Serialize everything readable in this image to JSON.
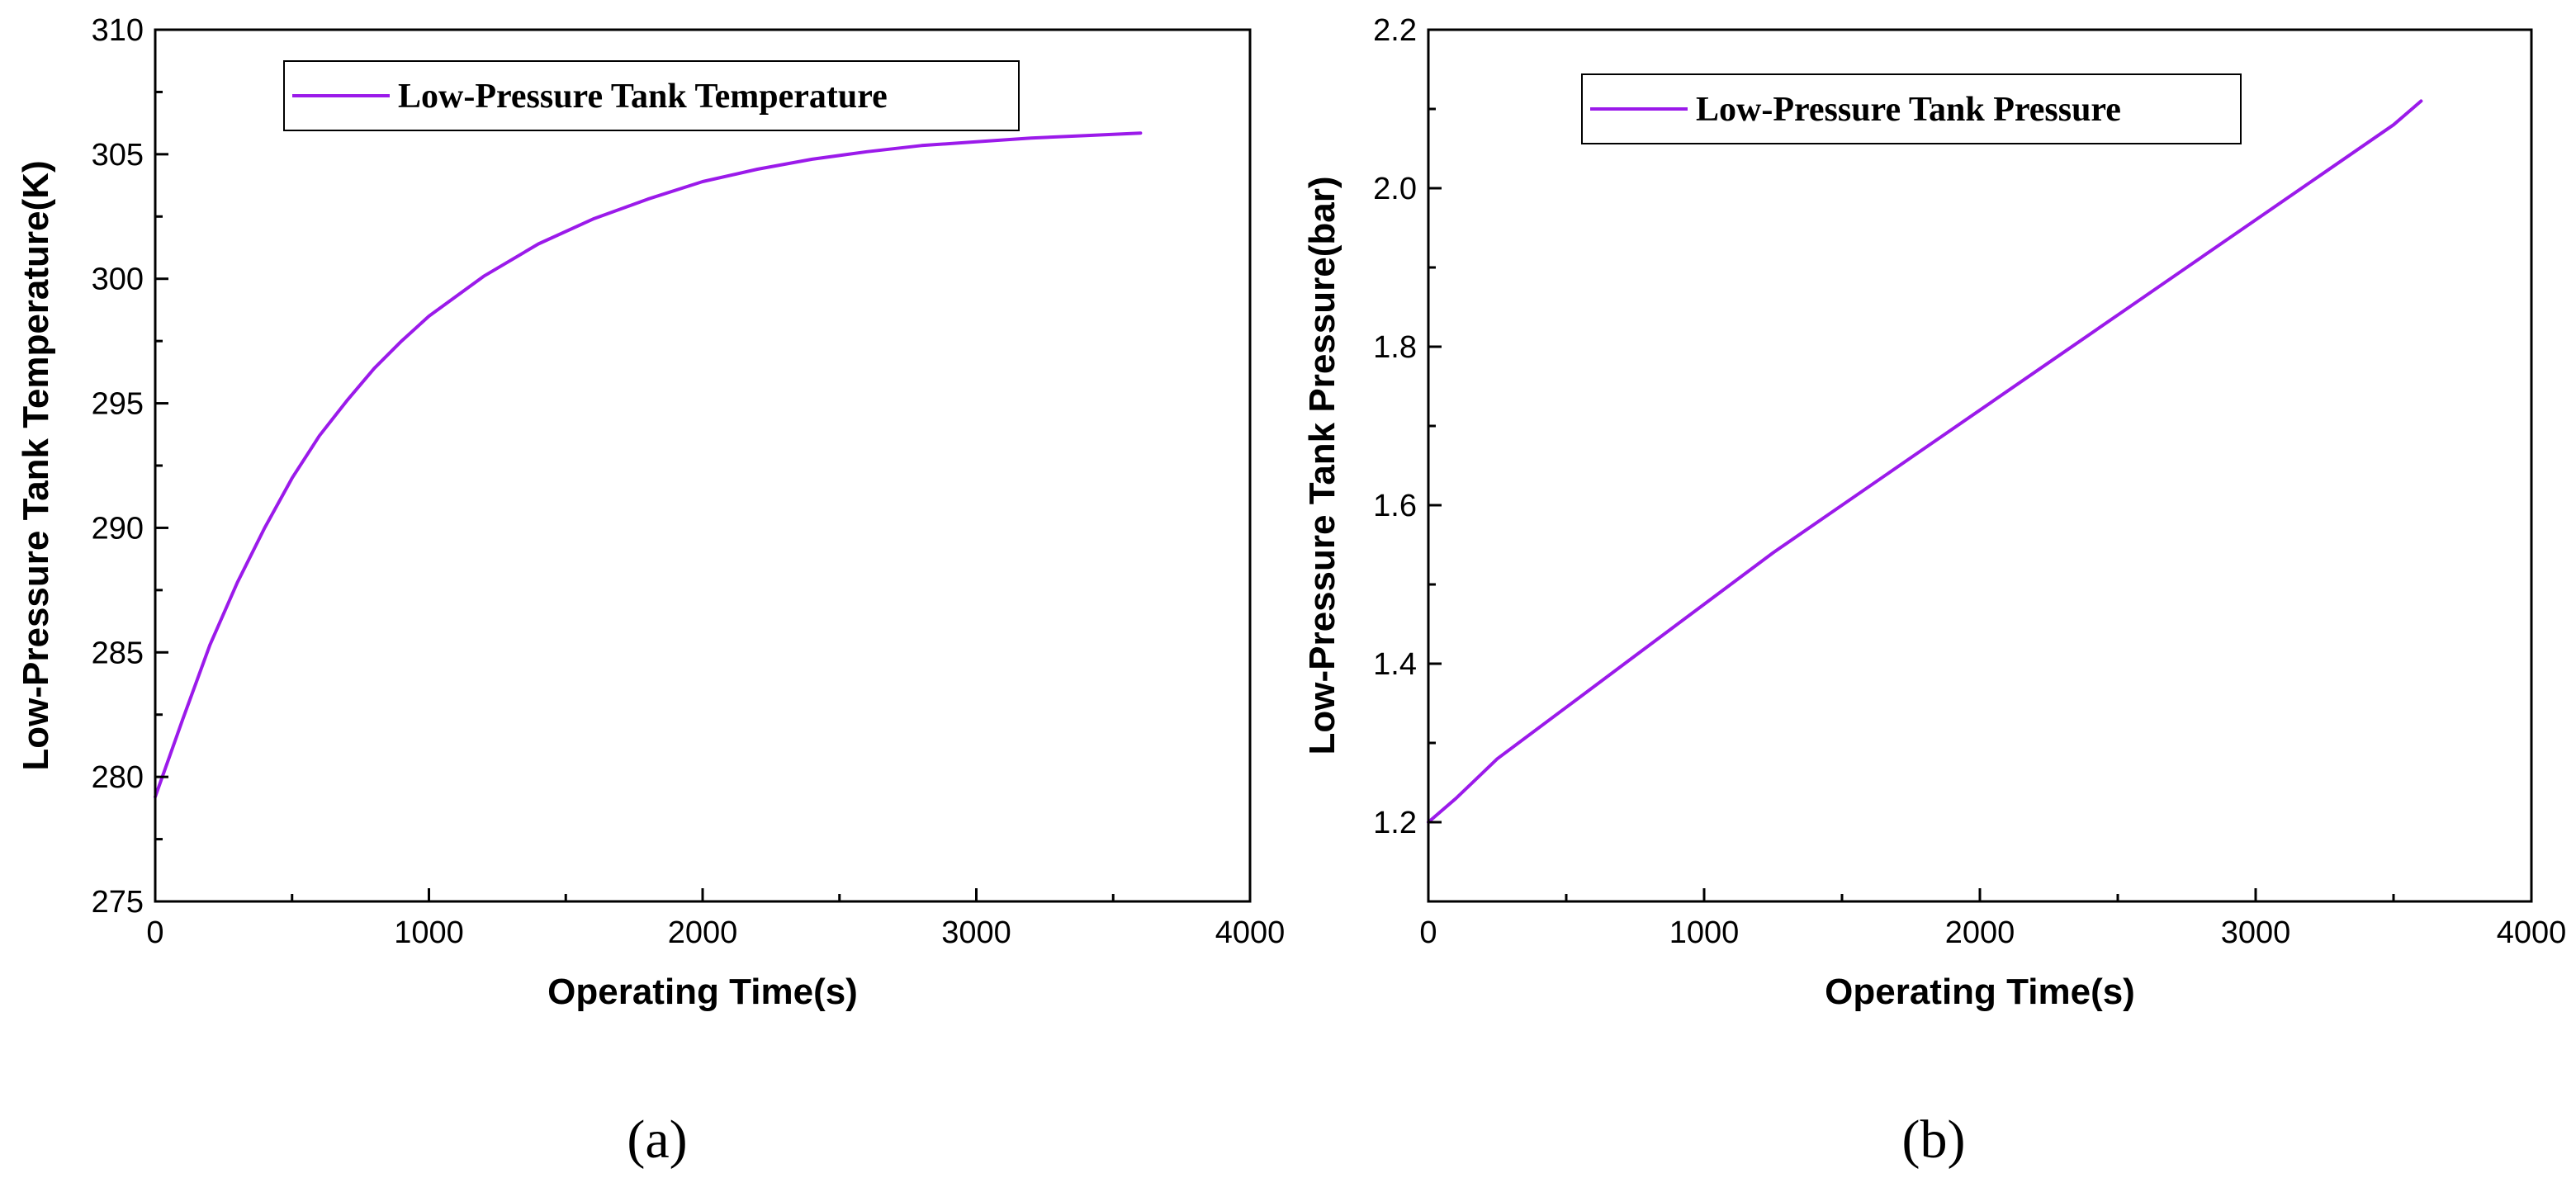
{
  "chart_data": [
    {
      "panel_label": "(a)",
      "type": "line",
      "xlabel": "Operating Time(s)",
      "ylabel": "Low-Pressure Tank Temperature(K)",
      "xlim": [
        0,
        4000
      ],
      "ylim": [
        275,
        310
      ],
      "xticks": [
        0,
        1000,
        2000,
        3000,
        4000
      ],
      "yticks": [
        275,
        280,
        285,
        290,
        295,
        300,
        305,
        310
      ],
      "xtick_labels": [
        "0",
        "1000",
        "2000",
        "3000",
        "4000"
      ],
      "ytick_labels": [
        "275",
        "280",
        "285",
        "290",
        "295",
        "300",
        "305",
        "310"
      ],
      "grid": false,
      "legend_position": "top-left",
      "series": [
        {
          "name": "Low-Pressure Tank Temperature",
          "color": "#9b1aea",
          "x": [
            0,
            100,
            200,
            300,
            400,
            500,
            600,
            700,
            800,
            900,
            1000,
            1200,
            1400,
            1600,
            1800,
            2000,
            2200,
            2400,
            2600,
            2800,
            3000,
            3200,
            3400,
            3600
          ],
          "y": [
            279.2,
            282.3,
            285.3,
            287.8,
            290.0,
            292.0,
            293.7,
            295.1,
            296.4,
            297.5,
            298.5,
            300.1,
            301.4,
            302.4,
            303.2,
            303.9,
            304.4,
            304.8,
            305.1,
            305.35,
            305.5,
            305.65,
            305.75,
            305.85
          ]
        }
      ]
    },
    {
      "panel_label": "(b)",
      "type": "line",
      "xlabel": "Operating Time(s)",
      "ylabel": "Low-Pressure Tank Pressure(bar)",
      "xlim": [
        0,
        4000
      ],
      "ylim": [
        1.1,
        2.2
      ],
      "xticks": [
        0,
        1000,
        2000,
        3000,
        4000
      ],
      "yticks": [
        1.2,
        1.4,
        1.6,
        1.8,
        2.0,
        2.2
      ],
      "xtick_labels": [
        "0",
        "1000",
        "2000",
        "3000",
        "4000"
      ],
      "ytick_labels": [
        "1.2",
        "1.4",
        "1.6",
        "1.8",
        "2.0",
        "2.2"
      ],
      "grid": false,
      "legend_position": "top-left",
      "series": [
        {
          "name": "Low-Pressure Tank Pressure",
          "color": "#9b1aea",
          "x": [
            0,
            100,
            250,
            500,
            750,
            1000,
            1250,
            1500,
            1750,
            2000,
            2250,
            2500,
            2750,
            3000,
            3250,
            3500,
            3600
          ],
          "y": [
            1.2,
            1.23,
            1.28,
            1.345,
            1.41,
            1.475,
            1.54,
            1.6,
            1.66,
            1.72,
            1.78,
            1.84,
            1.9,
            1.96,
            2.02,
            2.08,
            2.11
          ]
        }
      ]
    }
  ]
}
